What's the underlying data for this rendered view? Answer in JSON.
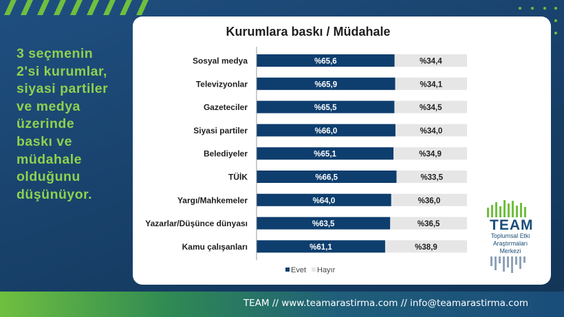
{
  "headline": "3 seçmenin\n2'si kurumlar,\nsiyasi partiler\nve medya\nüzerinde\nbaskı ve\nmüdahale\nolduğunu\ndüşünüyor.",
  "colors": {
    "evet": "#0e3e6e",
    "hayir": "#e6e6e6",
    "accent": "#8fd14f"
  },
  "chart_data": {
    "type": "bar",
    "orientation": "horizontal",
    "stacked": true,
    "title": "Kurumlara baskı / Müdahale",
    "categories": [
      "Sosyal medya",
      "Televizyonlar",
      "Gazeteciler",
      "Siyasi partiler",
      "Belediyeler",
      "TÜİK",
      "Yargı/Mahkemeler",
      "Yazarlar/Düşünce dünyası",
      "Kamu çalışanları"
    ],
    "series": [
      {
        "name": "Evet",
        "values": [
          65.6,
          65.9,
          65.5,
          66.0,
          65.1,
          66.5,
          64.0,
          63.5,
          61.1
        ],
        "labels": [
          "%65,6",
          "%65,9",
          "%65,5",
          "%66,0",
          "%65,1",
          "%66,5",
          "%64,0",
          "%63,5",
          "%61,1"
        ]
      },
      {
        "name": "Hayır",
        "values": [
          34.4,
          34.1,
          34.5,
          34.0,
          34.9,
          33.5,
          36.0,
          36.5,
          38.9
        ],
        "labels": [
          "%34,4",
          "%34,1",
          "%34,5",
          "%34,0",
          "%34,9",
          "%33,5",
          "%36,0",
          "%36,5",
          "%38,9"
        ]
      }
    ],
    "xlim": [
      0,
      100
    ],
    "legend": "bottom",
    "grid": false
  },
  "logo": {
    "word": "TEAM",
    "subtitle": "Toplumsal Etki\nAraştırmaları\nMerkezi"
  },
  "footer": {
    "text": "TEAM // www.teamarastirma.com // info@teamarastirma.com"
  }
}
